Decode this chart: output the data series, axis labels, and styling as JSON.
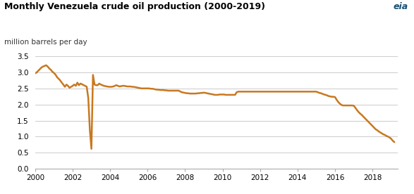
{
  "title": "Monthly Venezuela crude oil production (2000-2019)",
  "ylabel": "million barrels per day",
  "line_color": "#C87820",
  "line_width": 1.8,
  "ylim": [
    0.0,
    3.5
  ],
  "yticks": [
    0.0,
    0.5,
    1.0,
    1.5,
    2.0,
    2.5,
    3.0,
    3.5
  ],
  "xlim_start": 2000.0,
  "xlim_end": 2019.33,
  "xticks": [
    2000,
    2002,
    2004,
    2006,
    2008,
    2010,
    2012,
    2014,
    2016,
    2018
  ],
  "background_color": "#FFFFFF",
  "grid_color": "#CCCCCC",
  "series": [
    [
      2000.0,
      2.97
    ],
    [
      2000.083,
      3.0
    ],
    [
      2000.167,
      3.05
    ],
    [
      2000.25,
      3.1
    ],
    [
      2000.333,
      3.15
    ],
    [
      2000.417,
      3.18
    ],
    [
      2000.5,
      3.2
    ],
    [
      2000.583,
      3.22
    ],
    [
      2000.667,
      3.18
    ],
    [
      2000.75,
      3.12
    ],
    [
      2000.833,
      3.08
    ],
    [
      2000.917,
      3.02
    ],
    [
      2001.0,
      2.98
    ],
    [
      2001.083,
      2.93
    ],
    [
      2001.167,
      2.85
    ],
    [
      2001.25,
      2.8
    ],
    [
      2001.333,
      2.75
    ],
    [
      2001.417,
      2.68
    ],
    [
      2001.5,
      2.62
    ],
    [
      2001.583,
      2.55
    ],
    [
      2001.667,
      2.62
    ],
    [
      2001.75,
      2.58
    ],
    [
      2001.833,
      2.52
    ],
    [
      2001.917,
      2.55
    ],
    [
      2002.0,
      2.58
    ],
    [
      2002.083,
      2.62
    ],
    [
      2002.167,
      2.58
    ],
    [
      2002.25,
      2.68
    ],
    [
      2002.333,
      2.6
    ],
    [
      2002.417,
      2.65
    ],
    [
      2002.5,
      2.63
    ],
    [
      2002.583,
      2.6
    ],
    [
      2002.667,
      2.58
    ],
    [
      2002.75,
      2.55
    ],
    [
      2002.833,
      2.2
    ],
    [
      2002.917,
      1.2
    ],
    [
      2003.0,
      0.62
    ],
    [
      2003.083,
      2.92
    ],
    [
      2003.167,
      2.62
    ],
    [
      2003.25,
      2.6
    ],
    [
      2003.333,
      2.6
    ],
    [
      2003.417,
      2.65
    ],
    [
      2003.5,
      2.62
    ],
    [
      2003.583,
      2.6
    ],
    [
      2003.667,
      2.58
    ],
    [
      2003.75,
      2.57
    ],
    [
      2003.833,
      2.56
    ],
    [
      2003.917,
      2.55
    ],
    [
      2004.0,
      2.55
    ],
    [
      2004.083,
      2.55
    ],
    [
      2004.167,
      2.56
    ],
    [
      2004.25,
      2.58
    ],
    [
      2004.333,
      2.6
    ],
    [
      2004.417,
      2.58
    ],
    [
      2004.5,
      2.56
    ],
    [
      2004.583,
      2.57
    ],
    [
      2004.667,
      2.58
    ],
    [
      2004.75,
      2.58
    ],
    [
      2004.833,
      2.57
    ],
    [
      2004.917,
      2.56
    ],
    [
      2005.0,
      2.56
    ],
    [
      2005.083,
      2.56
    ],
    [
      2005.167,
      2.55
    ],
    [
      2005.25,
      2.55
    ],
    [
      2005.333,
      2.54
    ],
    [
      2005.417,
      2.53
    ],
    [
      2005.5,
      2.52
    ],
    [
      2005.583,
      2.51
    ],
    [
      2005.667,
      2.5
    ],
    [
      2005.75,
      2.5
    ],
    [
      2005.833,
      2.5
    ],
    [
      2005.917,
      2.5
    ],
    [
      2006.0,
      2.5
    ],
    [
      2006.083,
      2.5
    ],
    [
      2006.167,
      2.49
    ],
    [
      2006.25,
      2.49
    ],
    [
      2006.333,
      2.48
    ],
    [
      2006.417,
      2.47
    ],
    [
      2006.5,
      2.46
    ],
    [
      2006.583,
      2.46
    ],
    [
      2006.667,
      2.45
    ],
    [
      2006.75,
      2.45
    ],
    [
      2006.833,
      2.45
    ],
    [
      2006.917,
      2.44
    ],
    [
      2007.0,
      2.44
    ],
    [
      2007.083,
      2.43
    ],
    [
      2007.167,
      2.43
    ],
    [
      2007.25,
      2.43
    ],
    [
      2007.333,
      2.43
    ],
    [
      2007.417,
      2.43
    ],
    [
      2007.5,
      2.43
    ],
    [
      2007.583,
      2.43
    ],
    [
      2007.667,
      2.43
    ],
    [
      2007.75,
      2.4
    ],
    [
      2007.833,
      2.38
    ],
    [
      2007.917,
      2.37
    ],
    [
      2008.0,
      2.36
    ],
    [
      2008.083,
      2.35
    ],
    [
      2008.167,
      2.35
    ],
    [
      2008.25,
      2.34
    ],
    [
      2008.333,
      2.34
    ],
    [
      2008.417,
      2.34
    ],
    [
      2008.5,
      2.34
    ],
    [
      2008.583,
      2.34
    ],
    [
      2008.667,
      2.35
    ],
    [
      2008.75,
      2.35
    ],
    [
      2008.833,
      2.36
    ],
    [
      2008.917,
      2.36
    ],
    [
      2009.0,
      2.37
    ],
    [
      2009.083,
      2.36
    ],
    [
      2009.167,
      2.35
    ],
    [
      2009.25,
      2.34
    ],
    [
      2009.333,
      2.33
    ],
    [
      2009.417,
      2.32
    ],
    [
      2009.5,
      2.31
    ],
    [
      2009.583,
      2.3
    ],
    [
      2009.667,
      2.3
    ],
    [
      2009.75,
      2.3
    ],
    [
      2009.833,
      2.31
    ],
    [
      2009.917,
      2.31
    ],
    [
      2010.0,
      2.31
    ],
    [
      2010.083,
      2.31
    ],
    [
      2010.167,
      2.3
    ],
    [
      2010.25,
      2.3
    ],
    [
      2010.333,
      2.3
    ],
    [
      2010.417,
      2.3
    ],
    [
      2010.5,
      2.3
    ],
    [
      2010.583,
      2.3
    ],
    [
      2010.667,
      2.3
    ],
    [
      2010.75,
      2.38
    ],
    [
      2010.833,
      2.4
    ],
    [
      2010.917,
      2.4
    ],
    [
      2011.0,
      2.4
    ],
    [
      2011.083,
      2.4
    ],
    [
      2011.167,
      2.4
    ],
    [
      2011.25,
      2.4
    ],
    [
      2011.333,
      2.4
    ],
    [
      2011.417,
      2.4
    ],
    [
      2011.5,
      2.4
    ],
    [
      2011.583,
      2.4
    ],
    [
      2011.667,
      2.4
    ],
    [
      2011.75,
      2.4
    ],
    [
      2011.833,
      2.4
    ],
    [
      2011.917,
      2.4
    ],
    [
      2012.0,
      2.4
    ],
    [
      2012.083,
      2.4
    ],
    [
      2012.167,
      2.4
    ],
    [
      2012.25,
      2.4
    ],
    [
      2012.333,
      2.4
    ],
    [
      2012.417,
      2.4
    ],
    [
      2012.5,
      2.4
    ],
    [
      2012.583,
      2.4
    ],
    [
      2012.667,
      2.4
    ],
    [
      2012.75,
      2.4
    ],
    [
      2012.833,
      2.4
    ],
    [
      2012.917,
      2.4
    ],
    [
      2013.0,
      2.4
    ],
    [
      2013.083,
      2.4
    ],
    [
      2013.167,
      2.4
    ],
    [
      2013.25,
      2.4
    ],
    [
      2013.333,
      2.4
    ],
    [
      2013.417,
      2.4
    ],
    [
      2013.5,
      2.4
    ],
    [
      2013.583,
      2.4
    ],
    [
      2013.667,
      2.4
    ],
    [
      2013.75,
      2.4
    ],
    [
      2013.833,
      2.4
    ],
    [
      2013.917,
      2.4
    ],
    [
      2014.0,
      2.4
    ],
    [
      2014.083,
      2.4
    ],
    [
      2014.167,
      2.4
    ],
    [
      2014.25,
      2.4
    ],
    [
      2014.333,
      2.4
    ],
    [
      2014.417,
      2.4
    ],
    [
      2014.5,
      2.4
    ],
    [
      2014.583,
      2.4
    ],
    [
      2014.667,
      2.4
    ],
    [
      2014.75,
      2.4
    ],
    [
      2014.833,
      2.4
    ],
    [
      2014.917,
      2.4
    ],
    [
      2015.0,
      2.4
    ],
    [
      2015.083,
      2.38
    ],
    [
      2015.167,
      2.36
    ],
    [
      2015.25,
      2.35
    ],
    [
      2015.333,
      2.33
    ],
    [
      2015.417,
      2.31
    ],
    [
      2015.5,
      2.3
    ],
    [
      2015.583,
      2.28
    ],
    [
      2015.667,
      2.26
    ],
    [
      2015.75,
      2.25
    ],
    [
      2015.833,
      2.24
    ],
    [
      2015.917,
      2.24
    ],
    [
      2016.0,
      2.23
    ],
    [
      2016.083,
      2.15
    ],
    [
      2016.167,
      2.08
    ],
    [
      2016.25,
      2.03
    ],
    [
      2016.333,
      1.99
    ],
    [
      2016.417,
      1.97
    ],
    [
      2016.5,
      1.97
    ],
    [
      2016.583,
      1.97
    ],
    [
      2016.667,
      1.97
    ],
    [
      2016.75,
      1.97
    ],
    [
      2016.833,
      1.97
    ],
    [
      2016.917,
      1.97
    ],
    [
      2017.0,
      1.96
    ],
    [
      2017.083,
      1.9
    ],
    [
      2017.167,
      1.83
    ],
    [
      2017.25,
      1.77
    ],
    [
      2017.333,
      1.72
    ],
    [
      2017.417,
      1.68
    ],
    [
      2017.5,
      1.63
    ],
    [
      2017.583,
      1.58
    ],
    [
      2017.667,
      1.53
    ],
    [
      2017.75,
      1.48
    ],
    [
      2017.833,
      1.43
    ],
    [
      2017.917,
      1.38
    ],
    [
      2018.0,
      1.33
    ],
    [
      2018.083,
      1.28
    ],
    [
      2018.167,
      1.23
    ],
    [
      2018.25,
      1.2
    ],
    [
      2018.333,
      1.16
    ],
    [
      2018.417,
      1.13
    ],
    [
      2018.5,
      1.1
    ],
    [
      2018.583,
      1.07
    ],
    [
      2018.667,
      1.05
    ],
    [
      2018.75,
      1.02
    ],
    [
      2018.833,
      1.0
    ],
    [
      2018.917,
      0.97
    ],
    [
      2019.0,
      0.93
    ],
    [
      2019.083,
      0.87
    ],
    [
      2019.167,
      0.83
    ]
  ]
}
